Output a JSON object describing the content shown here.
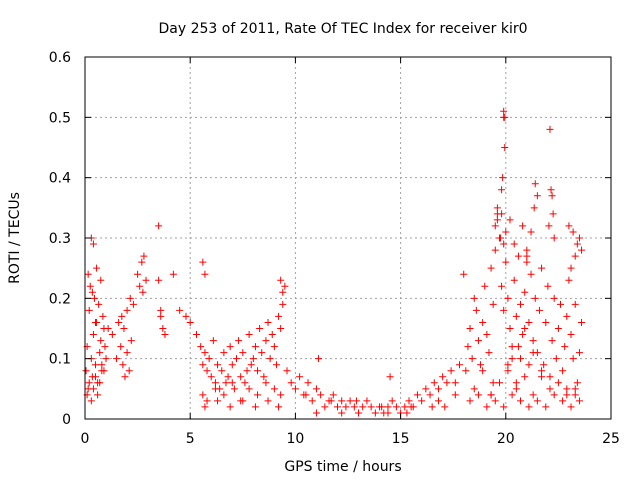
{
  "chart_data": {
    "type": "scatter",
    "title": "Day 253 of 2011, Rate Of TEC Index for receiver kir0",
    "xlabel": "GPS time / hours",
    "ylabel": "ROTI / TECUs",
    "xlim": [
      0,
      25
    ],
    "ylim": [
      0,
      0.6
    ],
    "xticks": [
      0,
      5,
      10,
      15,
      20,
      25
    ],
    "yticks": [
      0,
      0.1,
      0.2,
      0.3,
      0.4,
      0.5,
      0.6
    ],
    "xtick_labels": [
      "0",
      "5",
      "10",
      "15",
      "20",
      "25"
    ],
    "ytick_labels": [
      "0",
      "0.1",
      "0.2",
      "0.3",
      "0.4",
      "0.5",
      "0.6"
    ],
    "grid": true,
    "marker": "+",
    "color": "#ff0000",
    "series": [
      {
        "name": "ROTI",
        "x": [
          0.05,
          0.1,
          0.15,
          0.2,
          0.25,
          0.3,
          0.35,
          0.4,
          0.45,
          0.5,
          0.55,
          0.6,
          0.65,
          0.7,
          0.75,
          0.8,
          0.85,
          0.9,
          0.95,
          1.0,
          0.1,
          0.2,
          0.3,
          0.4,
          0.5,
          0.6,
          0.7,
          0.8,
          0.9,
          0.15,
          0.35,
          0.55,
          0.75,
          0.3,
          0.4,
          0.5,
          1.1,
          1.3,
          1.5,
          1.7,
          1.8,
          1.9,
          2.0,
          2.1,
          2.2,
          1.6,
          1.75,
          1.85,
          2.0,
          2.15,
          2.3,
          2.5,
          2.6,
          2.7,
          2.8,
          2.9,
          2.75,
          3.5,
          3.6,
          3.7,
          3.8,
          3.6,
          3.5,
          4.2,
          4.5,
          4.8,
          5.0,
          5.3,
          5.5,
          5.6,
          5.7,
          5.8,
          5.9,
          6.0,
          6.1,
          6.2,
          6.3,
          6.4,
          6.5,
          6.6,
          6.7,
          6.8,
          6.9,
          7.0,
          7.1,
          7.2,
          7.3,
          7.4,
          7.5,
          7.6,
          7.7,
          7.8,
          7.9,
          8.0,
          8.1,
          8.2,
          8.3,
          8.4,
          8.5,
          8.6,
          8.7,
          8.8,
          8.9,
          9.0,
          9.1,
          9.2,
          9.3,
          9.4,
          9.5,
          5.6,
          5.8,
          6.2,
          6.6,
          7.0,
          7.4,
          7.8,
          8.2,
          8.6,
          9.0,
          9.3,
          5.7,
          6.3,
          6.9,
          7.5,
          8.1,
          8.7,
          9.2,
          5.6,
          5.7,
          9.3,
          9.4,
          9.6,
          9.8,
          10.0,
          10.2,
          10.4,
          10.6,
          10.8,
          11.0,
          11.2,
          11.4,
          11.6,
          11.8,
          12.0,
          12.2,
          12.4,
          12.6,
          12.8,
          13.0,
          13.2,
          13.4,
          13.6,
          13.8,
          14.0,
          14.2,
          14.4,
          14.6,
          14.8,
          15.0,
          15.2,
          15.4,
          15.6,
          15.8,
          16.0,
          16.2,
          16.4,
          16.6,
          16.8,
          17.0,
          17.2,
          17.4,
          17.6,
          17.8,
          11.0,
          12.2,
          13.0,
          14.4,
          15.3,
          16.5,
          17.1,
          10.5,
          11.7,
          12.9,
          14.1,
          15.5,
          16.8,
          17.6,
          11.1,
          14.5,
          18.0,
          18.1,
          18.2,
          18.3,
          18.4,
          18.5,
          18.6,
          18.7,
          18.8,
          18.9,
          19.0,
          19.1,
          19.2,
          19.3,
          19.4,
          19.5,
          19.6,
          19.7,
          19.8,
          19.9,
          20.0,
          20.1,
          20.2,
          20.3,
          20.4,
          20.5,
          20.6,
          20.7,
          20.8,
          20.9,
          21.0,
          21.1,
          21.2,
          21.3,
          21.4,
          21.5,
          21.6,
          21.7,
          21.8,
          21.9,
          22.0,
          22.1,
          22.2,
          22.3,
          22.4,
          22.5,
          22.6,
          22.7,
          22.8,
          22.9,
          23.0,
          23.1,
          23.2,
          23.3,
          23.4,
          23.5,
          23.6,
          18.5,
          18.9,
          19.3,
          19.7,
          20.1,
          20.5,
          20.9,
          21.3,
          21.7,
          22.1,
          22.5,
          22.9,
          23.3,
          18.3,
          18.7,
          19.1,
          19.5,
          19.9,
          20.3,
          20.7,
          21.1,
          21.5,
          21.9,
          22.3,
          22.7,
          23.1,
          23.5,
          19.3,
          19.4,
          19.5,
          19.6,
          19.75,
          19.8,
          19.85,
          19.9,
          19.95,
          19.9,
          19.95,
          20.0,
          19.9,
          19.8,
          19.6,
          20.2,
          20.4,
          20.6,
          20.8,
          21.0,
          21.2,
          21.35,
          21.4,
          21.5,
          21.0,
          22.1,
          22.15,
          22.2,
          22.25,
          22.05,
          22.3,
          23.0,
          23.2,
          23.4,
          23.5,
          23.6,
          23.1,
          23.3,
          20.1,
          20.3,
          20.5,
          20.7,
          20.9,
          21.1,
          21.3,
          21.7,
          22.9,
          23.3
        ],
        "y": [
          0.08,
          0.12,
          0.05,
          0.18,
          0.22,
          0.1,
          0.07,
          0.14,
          0.2,
          0.09,
          0.16,
          0.06,
          0.19,
          0.11,
          0.13,
          0.08,
          0.17,
          0.15,
          0.12,
          0.1,
          0.04,
          0.06,
          0.03,
          0.05,
          0.07,
          0.04,
          0.06,
          0.09,
          0.08,
          0.24,
          0.21,
          0.25,
          0.23,
          0.3,
          0.29,
          0.16,
          0.15,
          0.14,
          0.1,
          0.12,
          0.09,
          0.07,
          0.11,
          0.08,
          0.13,
          0.16,
          0.17,
          0.15,
          0.18,
          0.2,
          0.19,
          0.24,
          0.22,
          0.26,
          0.27,
          0.23,
          0.21,
          0.32,
          0.18,
          0.15,
          0.14,
          0.17,
          0.23,
          0.24,
          0.18,
          0.17,
          0.16,
          0.14,
          0.12,
          0.09,
          0.11,
          0.08,
          0.1,
          0.07,
          0.13,
          0.06,
          0.09,
          0.05,
          0.08,
          0.11,
          0.06,
          0.07,
          0.12,
          0.09,
          0.05,
          0.1,
          0.13,
          0.07,
          0.11,
          0.06,
          0.08,
          0.14,
          0.09,
          0.1,
          0.12,
          0.08,
          0.15,
          0.11,
          0.07,
          0.13,
          0.16,
          0.1,
          0.14,
          0.12,
          0.09,
          0.17,
          0.15,
          0.19,
          0.22,
          0.04,
          0.03,
          0.05,
          0.04,
          0.06,
          0.03,
          0.05,
          0.04,
          0.06,
          0.05,
          0.04,
          0.02,
          0.03,
          0.02,
          0.03,
          0.02,
          0.03,
          0.02,
          0.26,
          0.24,
          0.23,
          0.21,
          0.08,
          0.06,
          0.05,
          0.07,
          0.04,
          0.06,
          0.03,
          0.05,
          0.04,
          0.02,
          0.03,
          0.04,
          0.02,
          0.03,
          0.02,
          0.03,
          0.02,
          0.01,
          0.02,
          0.03,
          0.02,
          0.01,
          0.02,
          0.01,
          0.02,
          0.03,
          0.02,
          0.01,
          0.02,
          0.03,
          0.02,
          0.04,
          0.03,
          0.05,
          0.04,
          0.06,
          0.05,
          0.07,
          0.06,
          0.08,
          0.06,
          0.09,
          0.01,
          0.01,
          0.01,
          0.01,
          0.01,
          0.02,
          0.02,
          0.04,
          0.03,
          0.03,
          0.02,
          0.02,
          0.03,
          0.04,
          0.1,
          0.07,
          0.24,
          0.08,
          0.12,
          0.15,
          0.1,
          0.2,
          0.18,
          0.13,
          0.09,
          0.16,
          0.22,
          0.14,
          0.11,
          0.25,
          0.19,
          0.28,
          0.33,
          0.3,
          0.22,
          0.18,
          0.26,
          0.2,
          0.15,
          0.1,
          0.23,
          0.17,
          0.12,
          0.19,
          0.14,
          0.21,
          0.27,
          0.16,
          0.24,
          0.13,
          0.2,
          0.11,
          0.18,
          0.25,
          0.09,
          0.16,
          0.22,
          0.07,
          0.13,
          0.2,
          0.1,
          0.15,
          0.19,
          0.08,
          0.12,
          0.17,
          0.23,
          0.14,
          0.1,
          0.19,
          0.06,
          0.11,
          0.16,
          0.05,
          0.08,
          0.04,
          0.06,
          0.09,
          0.05,
          0.07,
          0.04,
          0.08,
          0.05,
          0.06,
          0.04,
          0.05,
          0.03,
          0.04,
          0.02,
          0.03,
          0.02,
          0.04,
          0.03,
          0.02,
          0.03,
          0.02,
          0.04,
          0.03,
          0.02,
          0.03,
          0.04,
          0.06,
          0.32,
          0.34,
          0.3,
          0.38,
          0.4,
          0.5,
          0.45,
          0.51,
          0.5,
          0.31,
          0.29,
          0.34,
          0.35,
          0.33,
          0.29,
          0.27,
          0.32,
          0.26,
          0.31,
          0.35,
          0.39,
          0.37,
          0.28,
          0.48,
          0.38,
          0.37,
          0.34,
          0.32,
          0.3,
          0.32,
          0.31,
          0.29,
          0.3,
          0.28,
          0.25,
          0.27,
          0.08,
          0.12,
          0.06,
          0.1,
          0.15,
          0.09,
          0.11,
          0.07,
          0.05,
          0.04
        ]
      }
    ]
  }
}
